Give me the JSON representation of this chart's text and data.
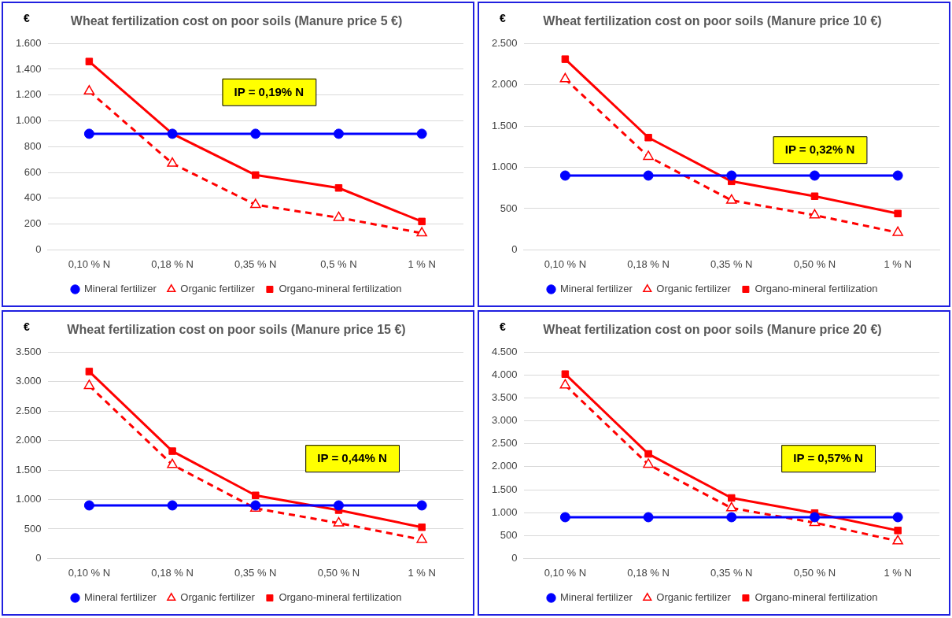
{
  "chart_data": [
    {
      "type": "line",
      "title": "Wheat fertilization cost on poor soils (Manure price 5 €)",
      "ylabel": "€",
      "categories": [
        "0,10 % N",
        "0,18 % N",
        "0,35 % N",
        "0,5 % N",
        "1 % N"
      ],
      "ylim": [
        0,
        1600
      ],
      "yticks": [
        {
          "value": 0,
          "label": "0"
        },
        {
          "value": 200,
          "label": "200"
        },
        {
          "value": 400,
          "label": "400"
        },
        {
          "value": 600,
          "label": "600"
        },
        {
          "value": 800,
          "label": "800"
        },
        {
          "value": 1000,
          "label": "1.000"
        },
        {
          "value": 1200,
          "label": "1.200"
        },
        {
          "value": 1400,
          "label": "1.400"
        },
        {
          "value": 1600,
          "label": "1.600"
        }
      ],
      "grid": "y",
      "legend": "bottom",
      "annotations": [
        "IP = 0,19% N"
      ],
      "series": [
        {
          "name": "Mineral fertilizer",
          "color": "#0000ff",
          "marker": "circle",
          "line_style": "solid",
          "values": [
            900,
            900,
            900,
            900,
            900
          ]
        },
        {
          "name": "Organic fertilizer",
          "color": "#ff0000",
          "marker": "triangle",
          "line_style": "dashed",
          "values": [
            1230,
            670,
            350,
            250,
            130
          ]
        },
        {
          "name": "Organo-mineral fertilization",
          "color": "#ff0000",
          "marker": "square",
          "line_style": "solid",
          "values": [
            1460,
            900,
            580,
            480,
            220
          ]
        }
      ]
    },
    {
      "type": "line",
      "title": "Wheat fertilization cost on poor soils (Manure price 10 €)",
      "ylabel": "€",
      "categories": [
        "0,10 % N",
        "0,18 % N",
        "0,35 % N",
        "0,50 % N",
        "1 % N"
      ],
      "ylim": [
        0,
        2500
      ],
      "yticks": [
        {
          "value": 0,
          "label": "0"
        },
        {
          "value": 500,
          "label": "500"
        },
        {
          "value": 1000,
          "label": "1.000"
        },
        {
          "value": 1500,
          "label": "1.500"
        },
        {
          "value": 2000,
          "label": "2.000"
        },
        {
          "value": 2500,
          "label": "2.500"
        }
      ],
      "grid": "y",
      "legend": "bottom",
      "annotations": [
        "IP = 0,32% N"
      ],
      "series": [
        {
          "name": "Mineral fertilizer",
          "color": "#0000ff",
          "marker": "circle",
          "line_style": "solid",
          "values": [
            900,
            900,
            900,
            900,
            900
          ]
        },
        {
          "name": "Organic fertilizer",
          "color": "#ff0000",
          "marker": "triangle",
          "line_style": "dashed",
          "values": [
            2070,
            1130,
            600,
            420,
            210
          ]
        },
        {
          "name": "Organo-mineral fertilization",
          "color": "#ff0000",
          "marker": "square",
          "line_style": "solid",
          "values": [
            2310,
            1360,
            830,
            650,
            440
          ]
        }
      ]
    },
    {
      "type": "line",
      "title": "Wheat fertilization cost on poor soils (Manure price 15 €)",
      "ylabel": "€",
      "categories": [
        "0,10 % N",
        "0,18 % N",
        "0,35 % N",
        "0,50 % N",
        "1 % N"
      ],
      "ylim": [
        0,
        3500
      ],
      "yticks": [
        {
          "value": 0,
          "label": "0"
        },
        {
          "value": 500,
          "label": "500"
        },
        {
          "value": 1000,
          "label": "1.000"
        },
        {
          "value": 1500,
          "label": "1.500"
        },
        {
          "value": 2000,
          "label": "2.000"
        },
        {
          "value": 2500,
          "label": "2.500"
        },
        {
          "value": 3000,
          "label": "3.000"
        },
        {
          "value": 3500,
          "label": "3.500"
        }
      ],
      "grid": "y",
      "legend": "bottom",
      "annotations": [
        "IP = 0,44% N"
      ],
      "series": [
        {
          "name": "Mineral fertilizer",
          "color": "#0000ff",
          "marker": "circle",
          "line_style": "solid",
          "values": [
            900,
            900,
            900,
            900,
            900
          ]
        },
        {
          "name": "Organic fertilizer",
          "color": "#ff0000",
          "marker": "triangle",
          "line_style": "dashed",
          "values": [
            2930,
            1590,
            850,
            600,
            320
          ]
        },
        {
          "name": "Organo-mineral fertilization",
          "color": "#ff0000",
          "marker": "square",
          "line_style": "solid",
          "values": [
            3170,
            1820,
            1070,
            820,
            530
          ]
        }
      ]
    },
    {
      "type": "line",
      "title": "Wheat fertilization cost on poor soils (Manure price 20 €)",
      "ylabel": "€",
      "categories": [
        "0,10 % N",
        "0,18 % N",
        "0,35 % N",
        "0,50 % N",
        "1 % N"
      ],
      "ylim": [
        0,
        4500
      ],
      "yticks": [
        {
          "value": 0,
          "label": "0"
        },
        {
          "value": 500,
          "label": "500"
        },
        {
          "value": 1000,
          "label": "1.000"
        },
        {
          "value": 1500,
          "label": "1.500"
        },
        {
          "value": 2000,
          "label": "2.000"
        },
        {
          "value": 2500,
          "label": "2.500"
        },
        {
          "value": 3000,
          "label": "3.000"
        },
        {
          "value": 3500,
          "label": "3.500"
        },
        {
          "value": 4000,
          "label": "4.000"
        },
        {
          "value": 4500,
          "label": "4.500"
        }
      ],
      "grid": "y",
      "legend": "bottom",
      "annotations": [
        "IP = 0,57% N"
      ],
      "series": [
        {
          "name": "Mineral fertilizer",
          "color": "#0000ff",
          "marker": "circle",
          "line_style": "solid",
          "values": [
            900,
            900,
            900,
            900,
            900
          ]
        },
        {
          "name": "Organic fertilizer",
          "color": "#ff0000",
          "marker": "triangle",
          "line_style": "dashed",
          "values": [
            3780,
            2050,
            1100,
            780,
            380
          ]
        },
        {
          "name": "Organo-mineral fertilization",
          "color": "#ff0000",
          "marker": "square",
          "line_style": "solid",
          "values": [
            4020,
            2280,
            1320,
            990,
            610
          ]
        }
      ]
    }
  ]
}
